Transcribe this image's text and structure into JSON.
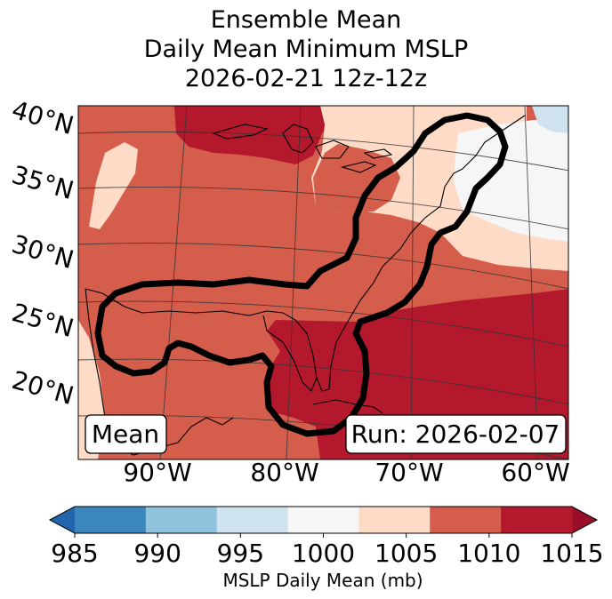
{
  "title": {
    "line1": "Ensemble Mean",
    "line2": "Daily Mean Minimum MSLP",
    "line3": "2026-02-21 12z-12z"
  },
  "map": {
    "latitude_labels": [
      "40°N",
      "35°N",
      "30°N",
      "25°N",
      "20°N"
    ],
    "longitude_labels": [
      "90°W",
      "80°W",
      "70°W",
      "60°W"
    ],
    "mean_box_label": "Mean",
    "run_box_label": "Run: 2026-02-07",
    "outline_color": "#000000",
    "coastline_color": "#000000"
  },
  "colorbar": {
    "ticks": [
      "985",
      "990",
      "995",
      "1000",
      "1005",
      "1010",
      "1015"
    ],
    "label": "MSLP Daily Mean (mb)",
    "colors": [
      "#3a86bd",
      "#90c4de",
      "#cfe3ef",
      "#f6f6f6",
      "#fddbc7",
      "#d55d4c",
      "#b4182d"
    ],
    "extend": "both"
  }
}
